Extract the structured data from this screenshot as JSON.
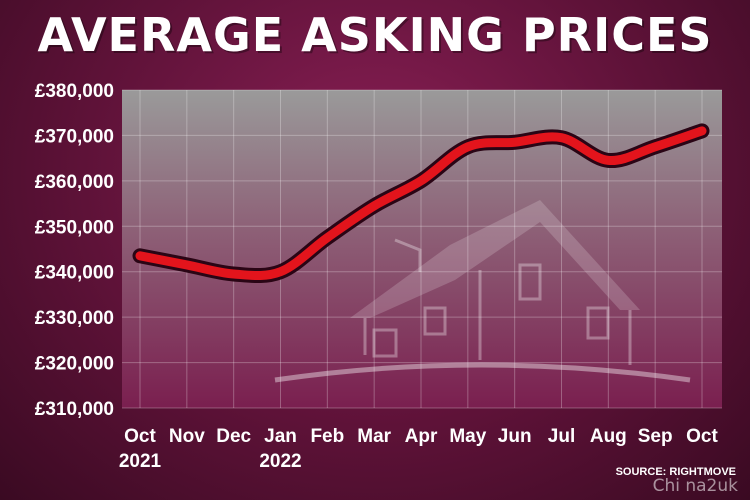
{
  "title": "AVERAGE ASKING PRICES",
  "source": "SOURCE: RIGHTMOVE",
  "watermark": "Chi na2uk",
  "colors": {
    "background": "#5e1238",
    "plot_fill": "#6b1a47",
    "line": "#e3141c",
    "line_outline": "#2a0515",
    "text": "#ffffff"
  },
  "chart_data": {
    "type": "line",
    "title": "AVERAGE ASKING PRICES",
    "categories": [
      "Oct 2021",
      "Nov",
      "Dec",
      "Jan 2022",
      "Feb",
      "Mar",
      "Apr",
      "May",
      "Jun",
      "Jul",
      "Aug",
      "Sep",
      "Oct"
    ],
    "x_tick_labels": [
      {
        "month": "Oct",
        "year": "2021"
      },
      {
        "month": "Nov",
        "year": ""
      },
      {
        "month": "Dec",
        "year": ""
      },
      {
        "month": "Jan",
        "year": "2022"
      },
      {
        "month": "Feb",
        "year": ""
      },
      {
        "month": "Mar",
        "year": ""
      },
      {
        "month": "Apr",
        "year": ""
      },
      {
        "month": "May",
        "year": ""
      },
      {
        "month": "Jun",
        "year": ""
      },
      {
        "month": "Jul",
        "year": ""
      },
      {
        "month": "Aug",
        "year": ""
      },
      {
        "month": "Sep",
        "year": ""
      },
      {
        "month": "Oct",
        "year": ""
      }
    ],
    "series": [
      {
        "values": [
          343500,
          341500,
          339500,
          340000,
          347500,
          354500,
          360000,
          367500,
          368500,
          369500,
          364500,
          367500,
          371000
        ]
      }
    ],
    "y_ticks": [
      "£310,000",
      "£320,000",
      "£330,000",
      "£340,000",
      "£350,000",
      "£360,000",
      "£370,000",
      "£380,000"
    ],
    "y_tick_values": [
      310000,
      320000,
      330000,
      340000,
      350000,
      360000,
      370000,
      380000
    ],
    "ylim": [
      310000,
      380000
    ],
    "grid": true,
    "legend": "none"
  }
}
